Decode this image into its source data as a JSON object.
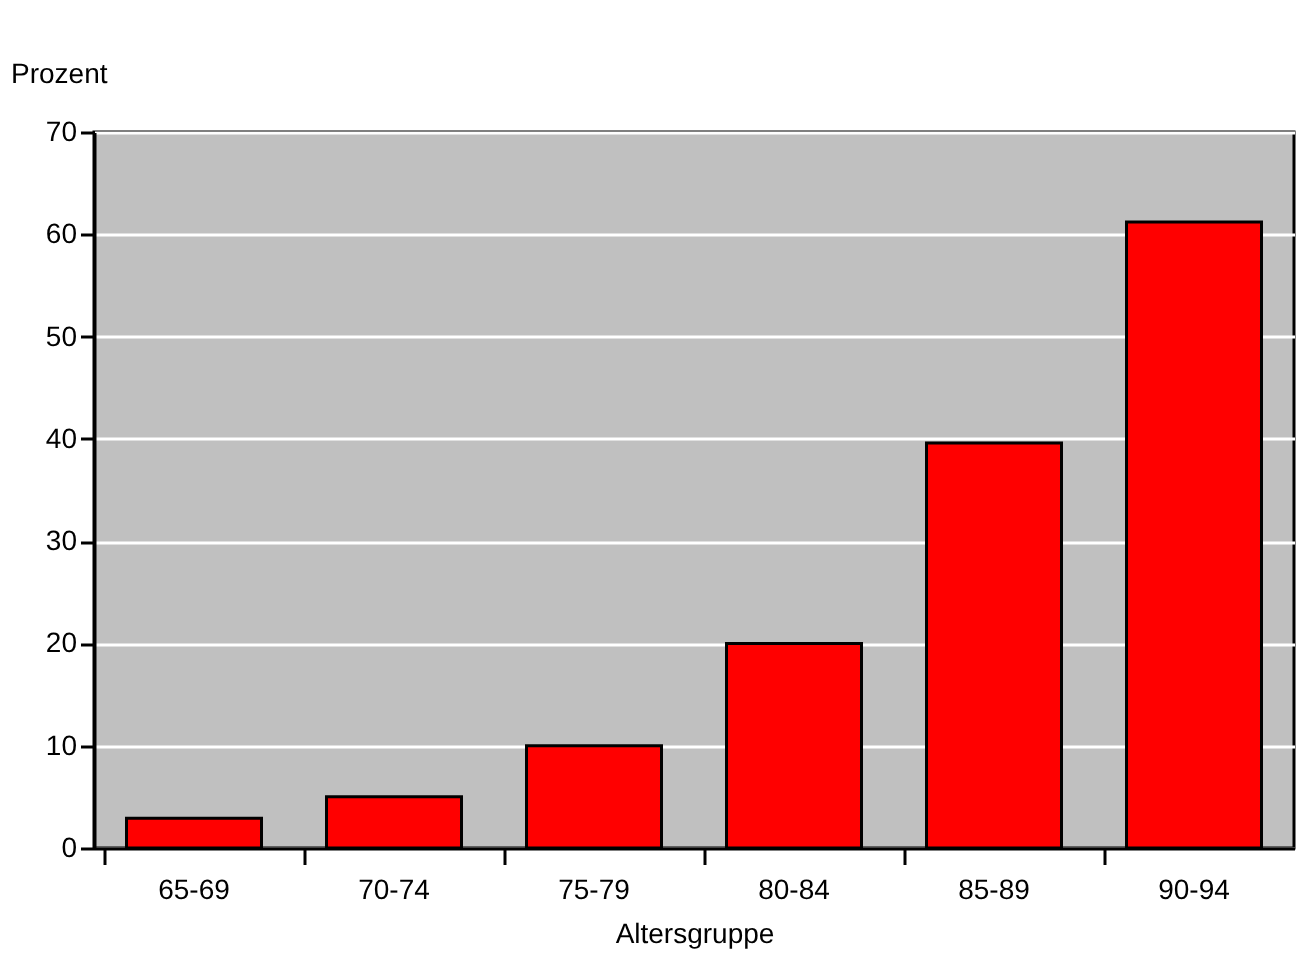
{
  "chart_data": {
    "type": "bar",
    "xlabel": "Altersgruppe",
    "ylabel": "Prozent",
    "categories": [
      "65-69",
      "70-74",
      "75-79",
      "80-84",
      "85-89",
      "90-94"
    ],
    "values": [
      2.9,
      5,
      10,
      20,
      39.6,
      61.2
    ],
    "color": "#ff0000",
    "ylim": [
      0,
      70
    ],
    "yticks": [
      0,
      10,
      20,
      30,
      40,
      50,
      60,
      70
    ],
    "grid": "y"
  }
}
